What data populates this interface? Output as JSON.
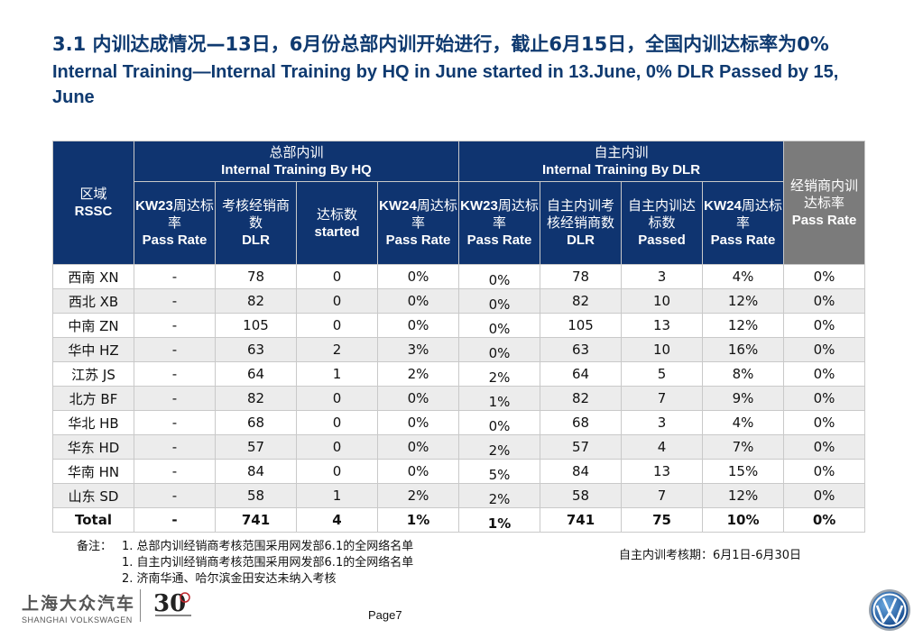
{
  "title": {
    "zh": "3.1 内训达成情况—13日，6月份总部内训开始进行，截止6月15日，全国内训达标率为0%",
    "en": "Internal Training—Internal Training by HQ in June started in 13.June, 0% DLR Passed by 15, June"
  },
  "table": {
    "group_region": {
      "zh": "区域",
      "en": "RSSC"
    },
    "group_hq": {
      "zh": "总部内训",
      "en": "Internal Training By HQ"
    },
    "group_dlr": {
      "zh": "自主内训",
      "en": "Internal Training By DLR"
    },
    "group_dealer": {
      "zh": "经销商内训达标率",
      "en": "Pass Rate"
    },
    "hq_cols": [
      {
        "bold": "KW23",
        "zh": "周达标率",
        "en": "Pass Rate"
      },
      {
        "bold": "",
        "zh": "考核经销商数",
        "en": "DLR"
      },
      {
        "bold": "",
        "zh": "达标数",
        "en": "started"
      },
      {
        "bold": "KW24",
        "zh": "周达标率",
        "en": "Pass Rate"
      }
    ],
    "dlr_cols": [
      {
        "bold": "KW23",
        "zh": "周达标率",
        "en": "Pass Rate"
      },
      {
        "bold": "",
        "zh": "自主内训考核经销商数",
        "en": "DLR"
      },
      {
        "bold": "",
        "zh": "自主内训达标数",
        "en": "Passed"
      },
      {
        "bold": "KW24",
        "zh": "周达标率",
        "en": "Pass Rate"
      }
    ],
    "rows": [
      [
        "西南 XN",
        "-",
        "78",
        "0",
        "0%",
        "0%",
        "78",
        "3",
        "4%",
        "0%"
      ],
      [
        "西北 XB",
        "-",
        "82",
        "0",
        "0%",
        "0%",
        "82",
        "10",
        "12%",
        "0%"
      ],
      [
        "中南 ZN",
        "-",
        "105",
        "0",
        "0%",
        "0%",
        "105",
        "13",
        "12%",
        "0%"
      ],
      [
        "华中 HZ",
        "-",
        "63",
        "2",
        "3%",
        "0%",
        "63",
        "10",
        "16%",
        "0%"
      ],
      [
        "江苏 JS",
        "-",
        "64",
        "1",
        "2%",
        "2%",
        "64",
        "5",
        "8%",
        "0%"
      ],
      [
        "北方 BF",
        "-",
        "82",
        "0",
        "0%",
        "1%",
        "82",
        "7",
        "9%",
        "0%"
      ],
      [
        "华北 HB",
        "-",
        "68",
        "0",
        "0%",
        "0%",
        "68",
        "3",
        "4%",
        "0%"
      ],
      [
        "华东 HD",
        "-",
        "57",
        "0",
        "0%",
        "2%",
        "57",
        "4",
        "7%",
        "0%"
      ],
      [
        "华南 HN",
        "-",
        "84",
        "0",
        "0%",
        "5%",
        "84",
        "13",
        "15%",
        "0%"
      ],
      [
        "山东 SD",
        "-",
        "58",
        "1",
        "2%",
        "2%",
        "58",
        "7",
        "12%",
        "0%"
      ]
    ],
    "total": [
      "Total",
      "-",
      "741",
      "4",
      "1%",
      "1%",
      "741",
      "75",
      "10%",
      "0%"
    ]
  },
  "notes": {
    "label": "备注：",
    "lines": [
      "1. 总部内训经销商考核范围采用网发部6.1的全网络名单",
      "1. 自主内训经销商考核范围采用网发部6.1的全网络名单",
      "2. 济南华通、哈尔滨金田安达未纳入考核"
    ]
  },
  "period": "自主内训考核期：6月1日-6月30日",
  "footer": {
    "brand_zh": "上海大众汽车",
    "brand_en": "SHANGHAI VOLKSWAGEN",
    "anniv_num": "30",
    "page": "Page7"
  }
}
